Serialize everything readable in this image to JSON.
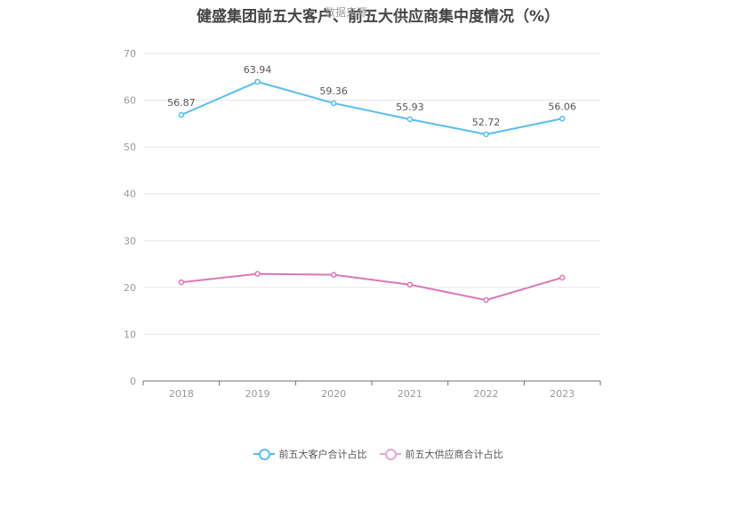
{
  "title": "健盛集团前五大客户、前五大供应商集中度情况（%）",
  "watermark": "数据来源：",
  "chart_data": {
    "type": "line",
    "categories": [
      "2018",
      "2019",
      "2020",
      "2021",
      "2022",
      "2023"
    ],
    "ylim": [
      0,
      70
    ],
    "yticks": [
      0,
      10,
      20,
      30,
      40,
      50,
      60,
      70
    ],
    "grid": true,
    "legend_position": "bottom",
    "series": [
      {
        "name": "前五大客户合计占比",
        "color": "#5bbde9",
        "values": [
          56.87,
          63.94,
          59.36,
          55.93,
          52.72,
          56.06
        ],
        "labels": [
          "56.87",
          "63.94",
          "59.36",
          "55.93",
          "52.72",
          "56.06"
        ],
        "show_labels": true
      },
      {
        "name": "前五大供应商合计占比",
        "color": "#d977b9",
        "values": [
          21.1,
          22.9,
          22.7,
          20.6,
          17.3,
          22.1
        ],
        "labels": [],
        "show_labels": false
      }
    ]
  },
  "legend": {
    "items": [
      {
        "label": "前五大客户合计占比",
        "color": "#5bbde9"
      },
      {
        "label": "前五大供应商合计占比",
        "color": "#e3a9cf"
      }
    ]
  }
}
